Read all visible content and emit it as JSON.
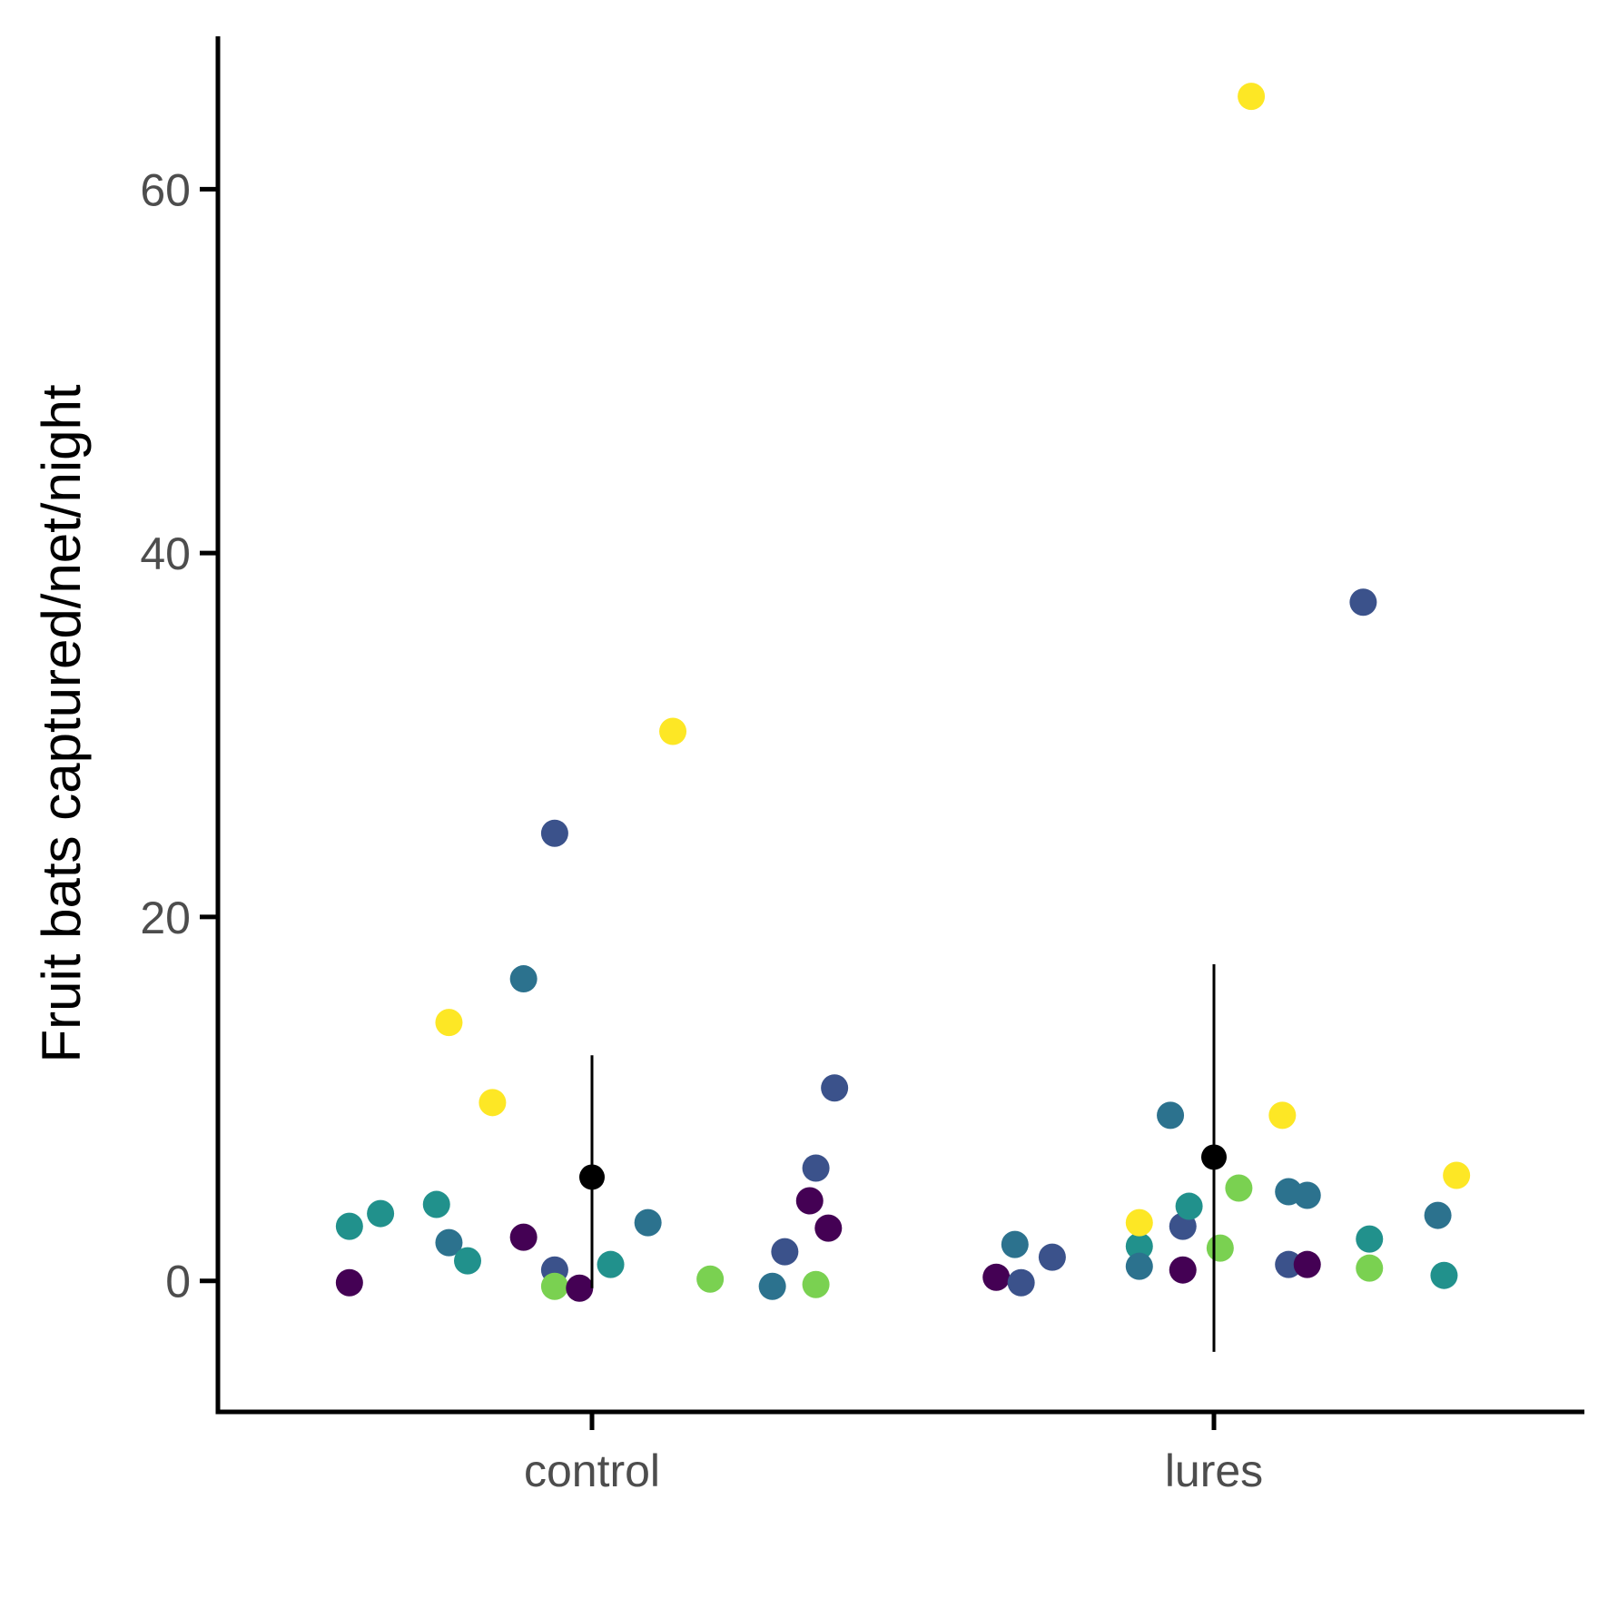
{
  "chart_data": {
    "type": "scatter",
    "title": "",
    "xlabel": "",
    "ylabel": "Fruit bats captured/net/night",
    "categories": [
      "control",
      "lures"
    ],
    "ylim": [
      -7.2,
      68.4
    ],
    "yticks": [
      0,
      20,
      40,
      60
    ],
    "grid": false,
    "legend": "none",
    "palette": [
      "#440154",
      "#3b528b",
      "#2c728e",
      "#21918c",
      "#28ae80",
      "#5ec962",
      "#7ad151",
      "#fde725"
    ],
    "groups": [
      {
        "category": "control",
        "summary": {
          "mean": 5.7,
          "lower": -0.4,
          "upper": 12.4
        },
        "points": [
          {
            "x": -0.39,
            "y": 3.0,
            "color": "#21918c"
          },
          {
            "x": -0.34,
            "y": 3.7,
            "color": "#21918c"
          },
          {
            "x": -0.39,
            "y": -0.1,
            "color": "#440154"
          },
          {
            "x": -0.25,
            "y": 4.2,
            "color": "#21918c"
          },
          {
            "x": -0.23,
            "y": 2.1,
            "color": "#2c728e"
          },
          {
            "x": -0.23,
            "y": 14.2,
            "color": "#fde725"
          },
          {
            "x": -0.2,
            "y": 1.1,
            "color": "#21918c"
          },
          {
            "x": -0.16,
            "y": 9.8,
            "color": "#fde725"
          },
          {
            "x": -0.11,
            "y": 16.6,
            "color": "#2c728e"
          },
          {
            "x": -0.11,
            "y": 2.4,
            "color": "#440154"
          },
          {
            "x": -0.06,
            "y": 24.6,
            "color": "#3b528b"
          },
          {
            "x": -0.06,
            "y": 0.6,
            "color": "#3b528b"
          },
          {
            "x": -0.06,
            "y": -0.3,
            "color": "#7ad151"
          },
          {
            "x": -0.02,
            "y": -0.4,
            "color": "#440154"
          },
          {
            "x": 0.03,
            "y": 0.9,
            "color": "#21918c"
          },
          {
            "x": 0.09,
            "y": 3.2,
            "color": "#2c728e"
          },
          {
            "x": 0.13,
            "y": 30.2,
            "color": "#fde725"
          },
          {
            "x": 0.19,
            "y": 0.1,
            "color": "#7ad151"
          },
          {
            "x": 0.29,
            "y": -0.3,
            "color": "#2c728e"
          },
          {
            "x": 0.31,
            "y": 1.6,
            "color": "#3b528b"
          },
          {
            "x": 0.35,
            "y": 4.4,
            "color": "#440154"
          },
          {
            "x": 0.36,
            "y": 6.2,
            "color": "#3b528b"
          },
          {
            "x": 0.36,
            "y": -0.2,
            "color": "#7ad151"
          },
          {
            "x": 0.38,
            "y": 2.9,
            "color": "#440154"
          },
          {
            "x": 0.39,
            "y": 10.6,
            "color": "#3b528b"
          }
        ]
      },
      {
        "category": "lures",
        "summary": {
          "mean": 6.8,
          "lower": -3.9,
          "upper": 17.4
        },
        "points": [
          {
            "x": -0.35,
            "y": 0.2,
            "color": "#440154"
          },
          {
            "x": -0.32,
            "y": 2.0,
            "color": "#2c728e"
          },
          {
            "x": -0.31,
            "y": -0.1,
            "color": "#3b528b"
          },
          {
            "x": -0.26,
            "y": 1.3,
            "color": "#3b528b"
          },
          {
            "x": -0.12,
            "y": 1.9,
            "color": "#21918c"
          },
          {
            "x": -0.12,
            "y": 3.2,
            "color": "#fde725"
          },
          {
            "x": -0.12,
            "y": 0.8,
            "color": "#2c728e"
          },
          {
            "x": -0.07,
            "y": 9.1,
            "color": "#2c728e"
          },
          {
            "x": -0.05,
            "y": 3.0,
            "color": "#3b528b"
          },
          {
            "x": -0.05,
            "y": 0.6,
            "color": "#440154"
          },
          {
            "x": -0.04,
            "y": 4.1,
            "color": "#21918c"
          },
          {
            "x": 0.01,
            "y": 1.8,
            "color": "#7ad151"
          },
          {
            "x": 0.04,
            "y": 5.1,
            "color": "#7ad151"
          },
          {
            "x": 0.06,
            "y": 65.1,
            "color": "#fde725"
          },
          {
            "x": 0.11,
            "y": 9.1,
            "color": "#fde725"
          },
          {
            "x": 0.12,
            "y": 4.9,
            "color": "#2c728e"
          },
          {
            "x": 0.12,
            "y": 0.9,
            "color": "#3b528b"
          },
          {
            "x": 0.15,
            "y": 4.7,
            "color": "#2c728e"
          },
          {
            "x": 0.15,
            "y": 0.9,
            "color": "#440154"
          },
          {
            "x": 0.24,
            "y": 37.3,
            "color": "#3b528b"
          },
          {
            "x": 0.25,
            "y": 0.7,
            "color": "#7ad151"
          },
          {
            "x": 0.25,
            "y": 2.3,
            "color": "#21918c"
          },
          {
            "x": 0.36,
            "y": 3.6,
            "color": "#2c728e"
          },
          {
            "x": 0.37,
            "y": 0.3,
            "color": "#21918c"
          },
          {
            "x": 0.39,
            "y": 5.8,
            "color": "#fde725"
          }
        ]
      }
    ]
  }
}
